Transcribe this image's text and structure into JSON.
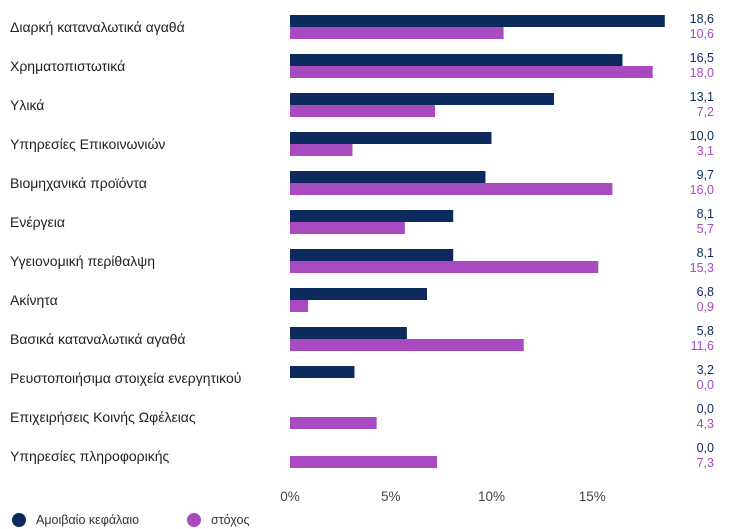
{
  "chart_data": {
    "type": "bar",
    "orientation": "horizontal",
    "categories": [
      "Διαρκή καταναλωτικά αγαθά",
      "Χρηματοπιστωτικά",
      "Υλικά",
      "Υπηρεσίες Επικοινωνιών",
      "Βιομηχανικά προϊόντα",
      "Ενέργεια",
      "Υγειονομική περίθαλψη",
      "Ακίνητα",
      "Βασικά καταναλωτικά αγαθά",
      "Ρευστοποιήσιμα στοιχεία ενεργητικού",
      "Επιχειρήσεις Κοινής Ωφέλειας",
      "Υπηρεσίες πληροφορικής"
    ],
    "series": [
      {
        "name": "Αμοιβαίο κεφάλαιο",
        "color": "#0d2a5c",
        "values": [
          18.6,
          16.5,
          13.1,
          10.0,
          9.7,
          8.1,
          8.1,
          6.8,
          5.8,
          3.2,
          0.0,
          0.0
        ],
        "labels": [
          "18,6",
          "16,5",
          "13,1",
          "10,0",
          "9,7",
          "8,1",
          "8,1",
          "6,8",
          "5,8",
          "3,2",
          "0,0",
          "0,0"
        ]
      },
      {
        "name": "στόχος",
        "color": "#a84bc0",
        "values": [
          10.6,
          18.0,
          7.2,
          3.1,
          16.0,
          5.7,
          15.3,
          0.9,
          11.6,
          0.0,
          4.3,
          7.3
        ],
        "labels": [
          "10,6",
          "18,0",
          "7,2",
          "3,1",
          "16,0",
          "5,7",
          "15,3",
          "0,9",
          "11,6",
          "0,0",
          "4,3",
          "7,3"
        ]
      }
    ],
    "xlim": [
      0,
      20
    ],
    "xticks": [
      0,
      5,
      10,
      15
    ],
    "xtick_labels": [
      "0%",
      "5%",
      "10%",
      "15%"
    ],
    "grid": false,
    "legend": "bottom-left"
  }
}
